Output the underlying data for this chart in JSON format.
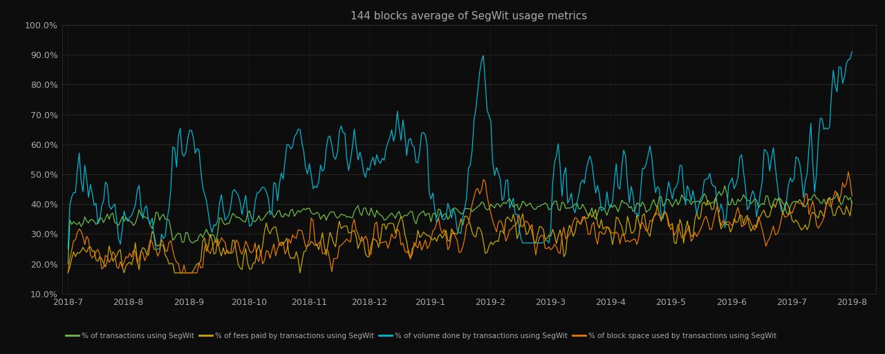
{
  "title": "144 blocks average of SegWit usage metrics",
  "background_color": "#0d0d0d",
  "text_color": "#aaaaaa",
  "grid_color": "#2a2a2a",
  "ylim": [
    0.1,
    1.0
  ],
  "yticks": [
    0.1,
    0.2,
    0.3,
    0.4,
    0.5,
    0.6,
    0.7,
    0.8,
    0.9,
    1.0
  ],
  "ytick_labels": [
    "10.0%",
    "20.0%",
    "30.0%",
    "40.0%",
    "50.0%",
    "60.0%",
    "70.0%",
    "80.0%",
    "90.0%",
    "100.0%"
  ],
  "x_labels": [
    "2018-7",
    "2018-8",
    "2018-9",
    "2018-10",
    "2018-11",
    "2018-12",
    "2019-1",
    "2019-2",
    "2019-3",
    "2019-4",
    "2019-5",
    "2019-6",
    "2019-7",
    "2019-8"
  ],
  "legend": [
    {
      "label": "% of transactions using SegWit",
      "color": "#6dbf45"
    },
    {
      "label": "% of fees paid by transactions using SegWit",
      "color": "#c8a800"
    },
    {
      "label": "% of volume done by transactions using SegWit",
      "color": "#00b8d4"
    },
    {
      "label": "% of block space used by transactions using SegWit",
      "color": "#e87a00"
    }
  ],
  "line_width": 0.9
}
